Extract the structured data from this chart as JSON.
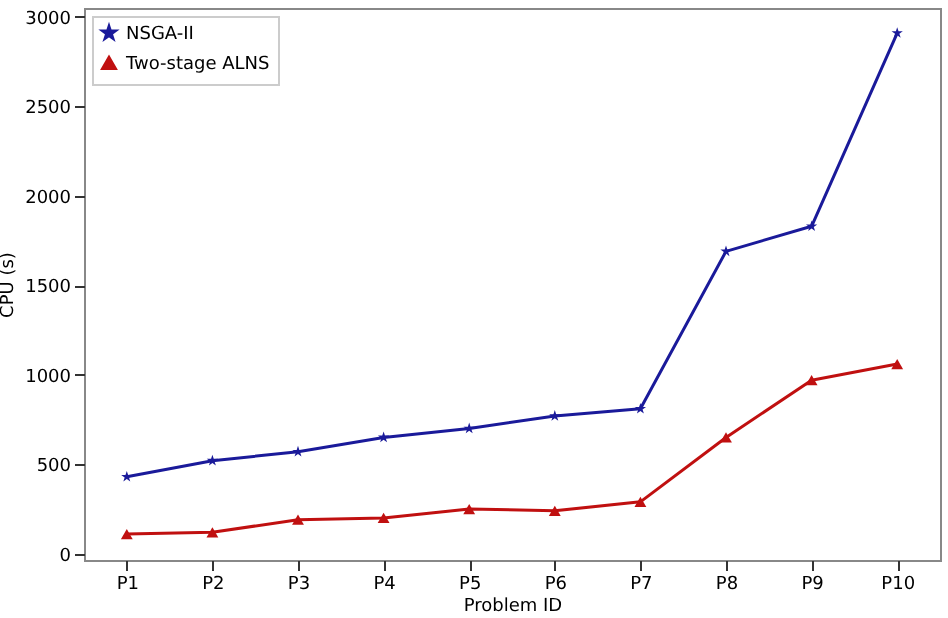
{
  "chart_data": {
    "type": "line",
    "xlabel": "Problem ID",
    "ylabel": "CPU (s)",
    "categories": [
      "P1",
      "P2",
      "P3",
      "P4",
      "P5",
      "P6",
      "P7",
      "P8",
      "P9",
      "P10"
    ],
    "series": [
      {
        "name": "NSGA-II",
        "color": "#1a1a9a",
        "marker": "star",
        "values": [
          430,
          520,
          570,
          650,
          700,
          770,
          810,
          1690,
          1830,
          2910
        ]
      },
      {
        "name": "Two-stage ALNS",
        "color": "#c01010",
        "marker": "triangle",
        "values": [
          110,
          120,
          190,
          200,
          250,
          240,
          290,
          650,
          970,
          1060
        ]
      }
    ],
    "ylim": [
      -35,
      3050
    ],
    "yticks": [
      0,
      500,
      1000,
      1500,
      2000,
      2500,
      3000
    ],
    "grid": false,
    "legend": "top left",
    "line_style": "solid"
  }
}
